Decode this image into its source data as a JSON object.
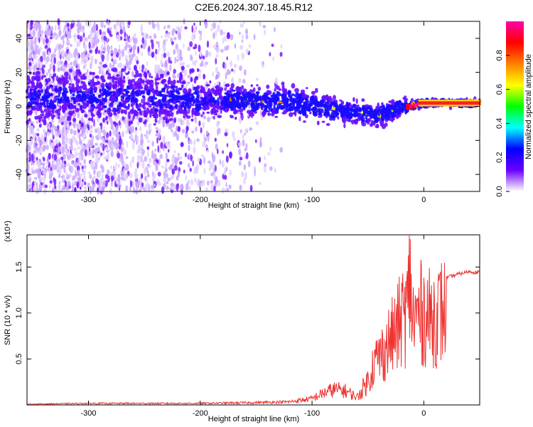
{
  "title": "C2E6.2024.307.18.45.R12",
  "chart_data": [
    {
      "type": "heatmap",
      "xlabel": "Height of straight line (km)",
      "ylabel": "Frequency (Hz)",
      "xlim": [
        -355,
        50
      ],
      "ylim": [
        -50,
        50
      ],
      "xticks": [
        -300,
        -200,
        -100,
        0
      ],
      "yticks": [
        -40,
        -20,
        0,
        20,
        40
      ],
      "colorbar": {
        "label": "Normalized spectral amplitude",
        "range": [
          0.0,
          1.0
        ],
        "ticks": [
          0.0,
          0.2,
          0.4,
          0.6,
          0.8
        ],
        "colormap": [
          "#ffffff",
          "#6a00ff",
          "#0000ff",
          "#00ffff",
          "#00ff00",
          "#ffff00",
          "#ff8000",
          "#ff0000",
          "#ff00aa"
        ]
      },
      "center_line": [
        {
          "x": -355,
          "y": 5
        },
        {
          "x": -300,
          "y": 6
        },
        {
          "x": -250,
          "y": 5
        },
        {
          "x": -200,
          "y": 4
        },
        {
          "x": -150,
          "y": 3
        },
        {
          "x": -110,
          "y": 2
        },
        {
          "x": -80,
          "y": -2
        },
        {
          "x": -60,
          "y": -4
        },
        {
          "x": -40,
          "y": -5
        },
        {
          "x": -20,
          "y": -1
        },
        {
          "x": 0,
          "y": 2
        },
        {
          "x": 50,
          "y": 2
        }
      ]
    },
    {
      "type": "line",
      "xlabel": "Height of straight line (km)",
      "ylabel": "SNR (10 * v/v)",
      "multiplier": "(x10⁴)",
      "xlim": [
        -355,
        50
      ],
      "ylim": [
        0,
        1.85
      ],
      "xticks": [
        -300,
        -200,
        -100,
        0
      ],
      "yticks": [
        0.5,
        1.0,
        1.5
      ],
      "ytick_labels": [
        "0.5",
        "1.0",
        "1.5"
      ],
      "series": [
        {
          "color": "#ee3333",
          "x": [
            -355,
            -300,
            -250,
            -200,
            -150,
            -120,
            -100,
            -90,
            -80,
            -70,
            -60,
            -50,
            -45,
            -40,
            -35,
            -30,
            -25,
            -20,
            -15,
            -12,
            -10,
            -5,
            0,
            5,
            10,
            20,
            30,
            40,
            50
          ],
          "y": [
            0.01,
            0.02,
            0.02,
            0.02,
            0.03,
            0.04,
            0.08,
            0.15,
            0.2,
            0.18,
            0.1,
            0.35,
            0.6,
            0.7,
            0.8,
            0.95,
            1.05,
            1.25,
            1.35,
            1.85,
            1.2,
            1.3,
            1.35,
            1.25,
            1.3,
            1.38,
            1.42,
            1.45,
            1.44
          ]
        }
      ]
    }
  ]
}
